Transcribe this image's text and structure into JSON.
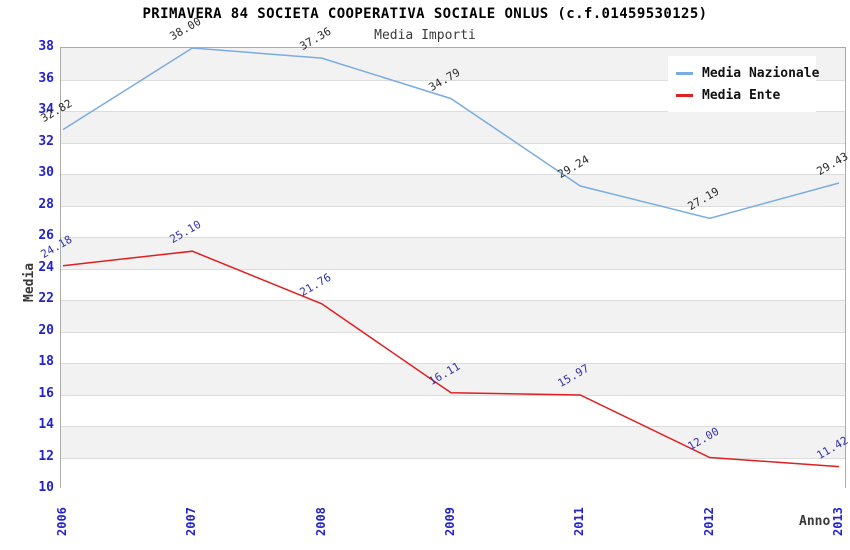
{
  "chart": {
    "title": "PRIMAVERA 84 SOCIETA COOPERATIVA SOCIALE ONLUS (c.f.01459530125)",
    "subtitle": "Media Importi",
    "xlabel": "Anno",
    "ylabel": "Media"
  },
  "chart_data": {
    "type": "line",
    "title": "PRIMAVERA 84 SOCIETA COOPERATIVA SOCIALE ONLUS (c.f.01459530125)",
    "subtitle": "Media Importi",
    "xlabel": "Anno",
    "ylabel": "Media",
    "categories": [
      "2006",
      "2007",
      "2008",
      "2009",
      "2011",
      "2012",
      "2013"
    ],
    "series": [
      {
        "name": "Media Nazionale",
        "color": "#79ace0",
        "label_color": "#2a2a2a",
        "values": [
          32.82,
          38.0,
          37.36,
          34.79,
          29.24,
          27.19,
          29.43
        ]
      },
      {
        "name": "Media Ente",
        "color": "#e02020",
        "label_color": "#3333aa",
        "values": [
          24.18,
          25.1,
          21.76,
          16.11,
          15.97,
          12.0,
          11.42
        ]
      }
    ],
    "ylim": [
      10,
      38
    ],
    "ytick_step": 2,
    "grid": true,
    "band_color": "#f2f2f2",
    "tick_color": "#2323cc",
    "legend_position": "top-right",
    "value_label_decimals": 2
  }
}
